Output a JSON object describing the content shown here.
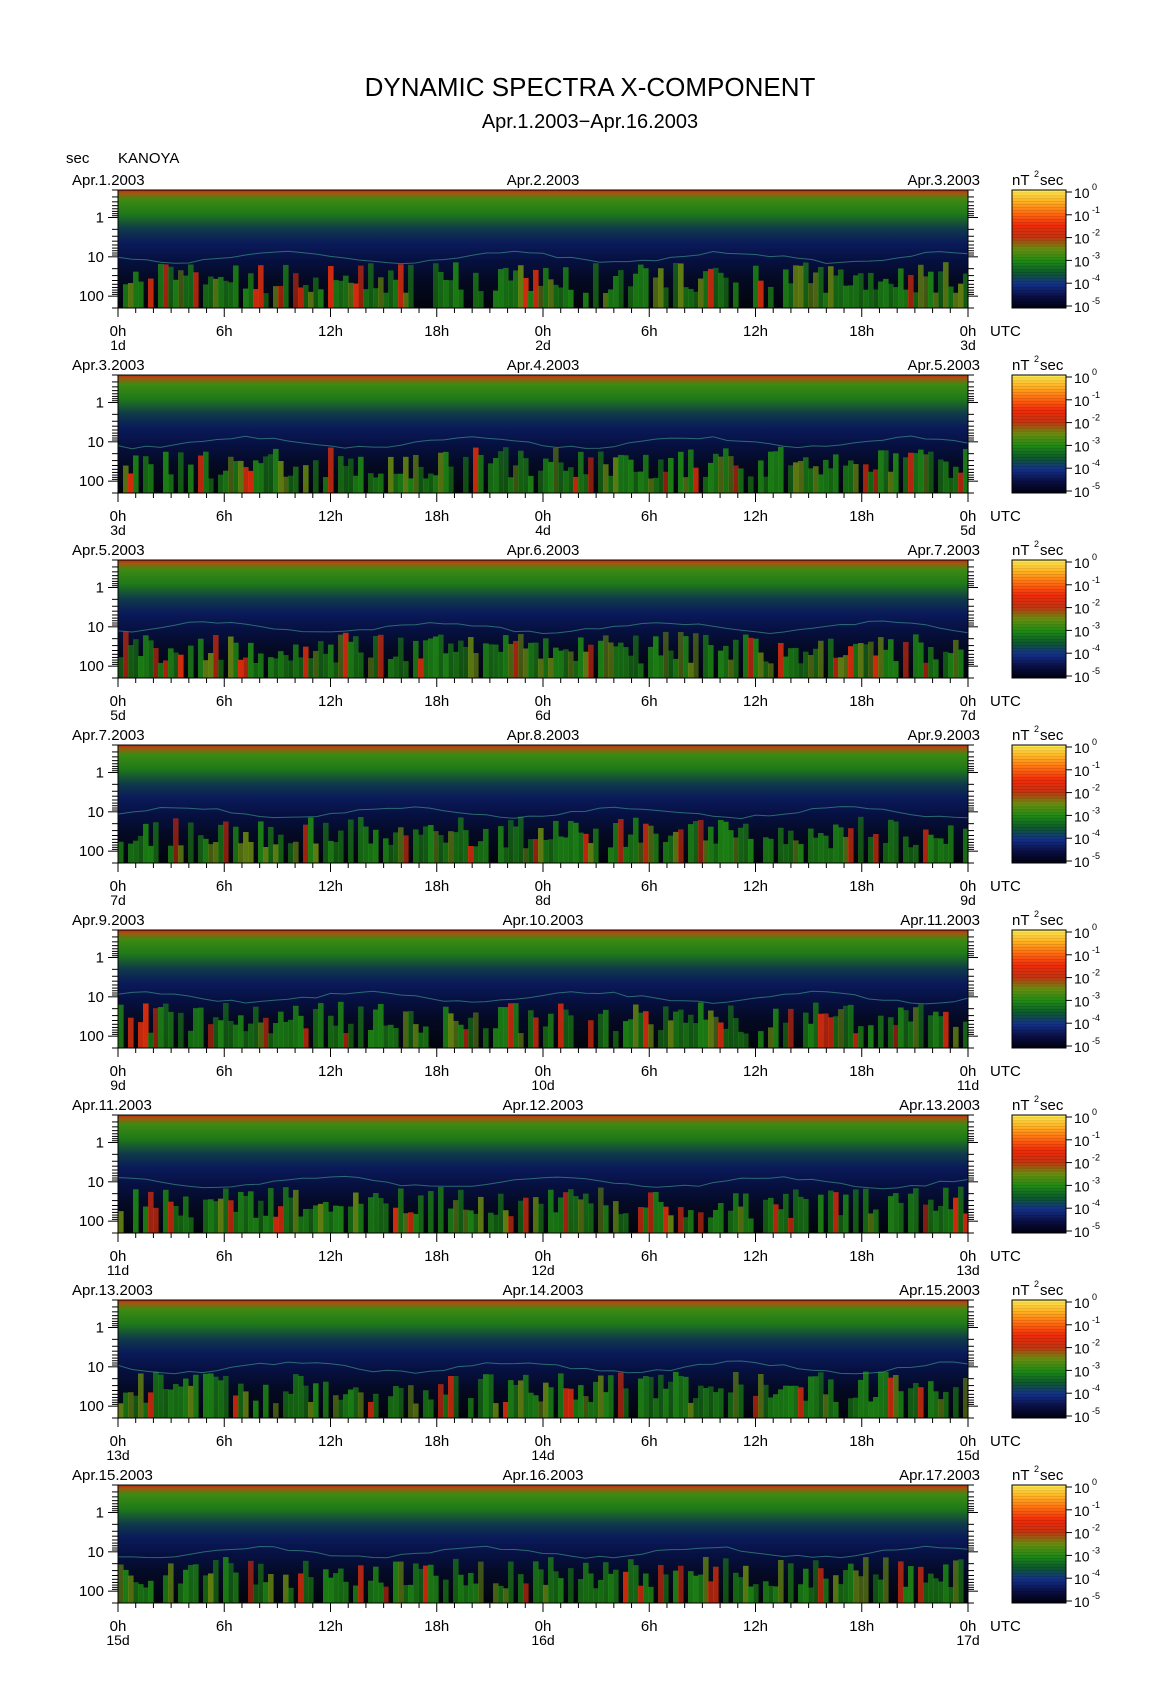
{
  "title": "DYNAMIC SPECTRA X-COMPONENT",
  "subtitle": "Apr.1.2003−Apr.16.2003",
  "station_label": "sec",
  "station": "KANOYA",
  "colorbar_unit": "nT",
  "colorbar_unit_sup": "2",
  "colorbar_unit_suffix": "sec",
  "utc_label": "UTC",
  "colors": {
    "scale": [
      "#000010",
      "#0a0f45",
      "#14308a",
      "#0c5a2c",
      "#1f8a14",
      "#6a8f10",
      "#c23310",
      "#f02a0a",
      "#ff6a10",
      "#ffb020",
      "#ffee55"
    ]
  },
  "chart_data": [
    {
      "type": "heatmap",
      "left_date": "Apr.1.2003",
      "mid_date": "Apr.2.2003",
      "right_date": "Apr.3.2003",
      "day_left": "1d",
      "day_mid": "2d",
      "day_right": "3d"
    },
    {
      "type": "heatmap",
      "left_date": "Apr.3.2003",
      "mid_date": "Apr.4.2003",
      "right_date": "Apr.5.2003",
      "day_left": "3d",
      "day_mid": "4d",
      "day_right": "5d"
    },
    {
      "type": "heatmap",
      "left_date": "Apr.5.2003",
      "mid_date": "Apr.6.2003",
      "right_date": "Apr.7.2003",
      "day_left": "5d",
      "day_mid": "6d",
      "day_right": "7d"
    },
    {
      "type": "heatmap",
      "left_date": "Apr.7.2003",
      "mid_date": "Apr.8.2003",
      "right_date": "Apr.9.2003",
      "day_left": "7d",
      "day_mid": "8d",
      "day_right": "9d"
    },
    {
      "type": "heatmap",
      "left_date": "Apr.9.2003",
      "mid_date": "Apr.10.2003",
      "right_date": "Apr.11.2003",
      "day_left": "9d",
      "day_mid": "10d",
      "day_right": "11d"
    },
    {
      "type": "heatmap",
      "left_date": "Apr.11.2003",
      "mid_date": "Apr.12.2003",
      "right_date": "Apr.13.2003",
      "day_left": "11d",
      "day_mid": "12d",
      "day_right": "13d"
    },
    {
      "type": "heatmap",
      "left_date": "Apr.13.2003",
      "mid_date": "Apr.14.2003",
      "right_date": "Apr.15.2003",
      "day_left": "13d",
      "day_mid": "14d",
      "day_right": "15d"
    },
    {
      "type": "heatmap",
      "left_date": "Apr.15.2003",
      "mid_date": "Apr.16.2003",
      "right_date": "Apr.17.2003",
      "day_left": "15d",
      "day_mid": "16d",
      "day_right": "17d"
    }
  ],
  "y_tick_labels": [
    "1",
    "10",
    "100"
  ],
  "x_tick_labels": [
    "0h",
    "6h",
    "12h",
    "18h",
    "0h",
    "6h",
    "12h",
    "18h",
    "0h"
  ],
  "colorbar_tick_exponents": [
    "0",
    "-1",
    "-2",
    "-3",
    "-4",
    "-5"
  ],
  "colorbar_tick_base": "10"
}
